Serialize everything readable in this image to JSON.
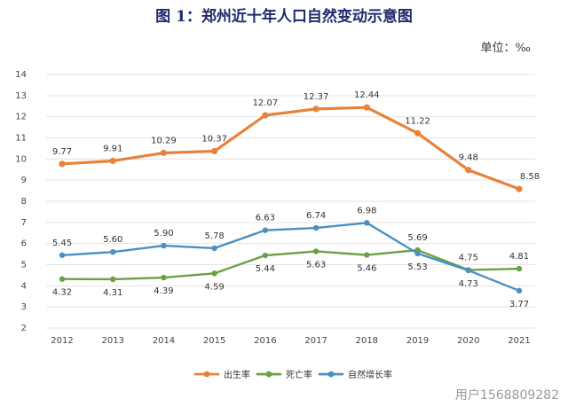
{
  "chart_data": {
    "type": "line",
    "title": "图 1：郑州近十年人口自然变动示意图",
    "unit_label": "单位：‰",
    "x": [
      "2012",
      "2013",
      "2014",
      "2015",
      "2016",
      "2017",
      "2018",
      "2019",
      "2020",
      "2021"
    ],
    "ylim": [
      2,
      14
    ],
    "yticks": [
      2,
      3,
      4,
      5,
      6,
      7,
      8,
      9,
      10,
      11,
      12,
      13,
      14
    ],
    "series": [
      {
        "name": "出生率",
        "color": "#e8823a",
        "values": [
          9.77,
          9.91,
          10.29,
          10.37,
          12.07,
          12.37,
          12.44,
          11.22,
          9.48,
          8.58
        ],
        "labels": [
          "9.77",
          "9.91",
          "10.29",
          "10.37",
          "12.07",
          "12.37",
          "12.44",
          "11.22",
          "9.48",
          "8.58"
        ],
        "label_pos": "above"
      },
      {
        "name": "死亡率",
        "color": "#6aa142",
        "values": [
          4.32,
          4.31,
          4.39,
          4.59,
          5.44,
          5.63,
          5.46,
          5.69,
          4.75,
          4.81
        ],
        "labels": [
          "4.32",
          "4.31",
          "4.39",
          "4.59",
          "5.44",
          "5.63",
          "5.46",
          "5.69",
          "4.75",
          "4.81"
        ],
        "label_pos": "mixed"
      },
      {
        "name": "自然增长率",
        "color": "#4a90c2",
        "values": [
          5.45,
          5.6,
          5.9,
          5.78,
          6.63,
          6.74,
          6.98,
          5.53,
          4.73,
          3.77
        ],
        "labels": [
          "5.45",
          "5.60",
          "5.90",
          "5.78",
          "6.63",
          "6.74",
          "6.98",
          "5.53",
          "4.73",
          "3.77"
        ],
        "label_pos": "mixed"
      }
    ],
    "legend_position": "bottom"
  },
  "watermark": "用户1568809282"
}
